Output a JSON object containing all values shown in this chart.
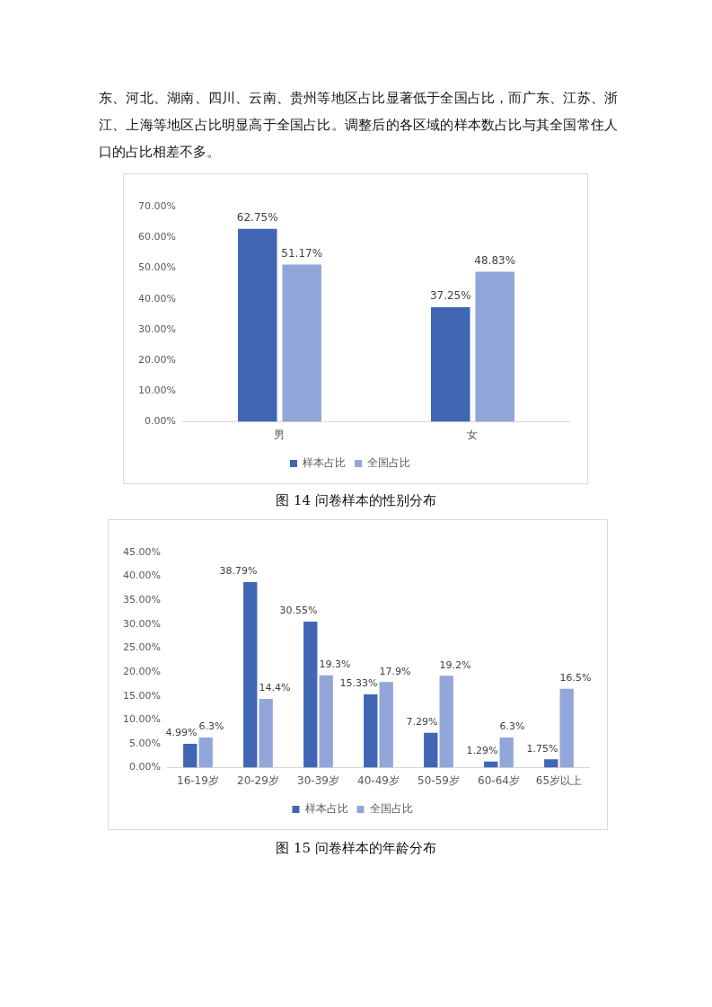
{
  "chart_data": [
    {
      "type": "bar",
      "title": "图 14  问卷样本的性别分布",
      "annotations": [
        "东、河北、湖南、四川、云南、贵州等地区占比显著低于全国占比，而广东、江苏、浙江、上海等地区占比明显高于全国占比。调整后的各区域的样本数占比与其全国常住人口的占比相差不多。"
      ],
      "categories": [
        "男",
        "女"
      ],
      "series": [
        {
          "name": "样本占比",
          "color": "#4066b4",
          "values": [
            62.75,
            37.25
          ],
          "value_labels": [
            "62.75%",
            "37.25%"
          ]
        },
        {
          "name": "全国占比",
          "color": "#93a6d9",
          "values": [
            51.17,
            48.83
          ],
          "value_labels": [
            "51.17%",
            "48.83%"
          ]
        }
      ],
      "ylim": [
        0,
        70
      ],
      "yticks": [
        {
          "value": 0,
          "label": "0.00%"
        },
        {
          "value": 10,
          "label": "10.00%"
        },
        {
          "value": 20,
          "label": "20.00%"
        },
        {
          "value": 30,
          "label": "30.00%"
        },
        {
          "value": 40,
          "label": "40.00%"
        },
        {
          "value": 50,
          "label": "50.00%"
        },
        {
          "value": 60,
          "label": "60.00%"
        },
        {
          "value": 70,
          "label": "70.00%"
        }
      ],
      "grid": false,
      "legend": "bottom"
    },
    {
      "type": "bar",
      "title": "图 15  问卷样本的年龄分布",
      "categories": [
        "16-19岁",
        "20-29岁",
        "30-39岁",
        "40-49岁",
        "50-59岁",
        "60-64岁",
        "65岁以上"
      ],
      "series": [
        {
          "name": "样本占比",
          "color": "#4066b4",
          "values": [
            4.99,
            38.79,
            30.55,
            15.33,
            7.29,
            1.29,
            1.75
          ],
          "value_labels": [
            "4.99%",
            "38.79%",
            "30.55%",
            "15.33%",
            "7.29%",
            "1.29%",
            "1.75%"
          ]
        },
        {
          "name": "全国占比",
          "color": "#93a6d9",
          "values": [
            6.3,
            14.4,
            19.3,
            17.9,
            19.2,
            6.3,
            16.5
          ],
          "value_labels": [
            "6.3%",
            "14.4%",
            "19.3%",
            "17.9%",
            "19.2%",
            "6.3%",
            "16.5%"
          ]
        }
      ],
      "ylim": [
        0,
        45
      ],
      "yticks": [
        {
          "value": 0,
          "label": "0.00%"
        },
        {
          "value": 5,
          "label": "5.00%"
        },
        {
          "value": 10,
          "label": "10.00%"
        },
        {
          "value": 15,
          "label": "15.00%"
        },
        {
          "value": 20,
          "label": "20.00%"
        },
        {
          "value": 25,
          "label": "25.00%"
        },
        {
          "value": 30,
          "label": "30.00%"
        },
        {
          "value": 35,
          "label": "35.00%"
        },
        {
          "value": 40,
          "label": "40.00%"
        },
        {
          "value": 45,
          "label": "45.00%"
        }
      ],
      "grid": false,
      "legend": "bottom"
    }
  ]
}
